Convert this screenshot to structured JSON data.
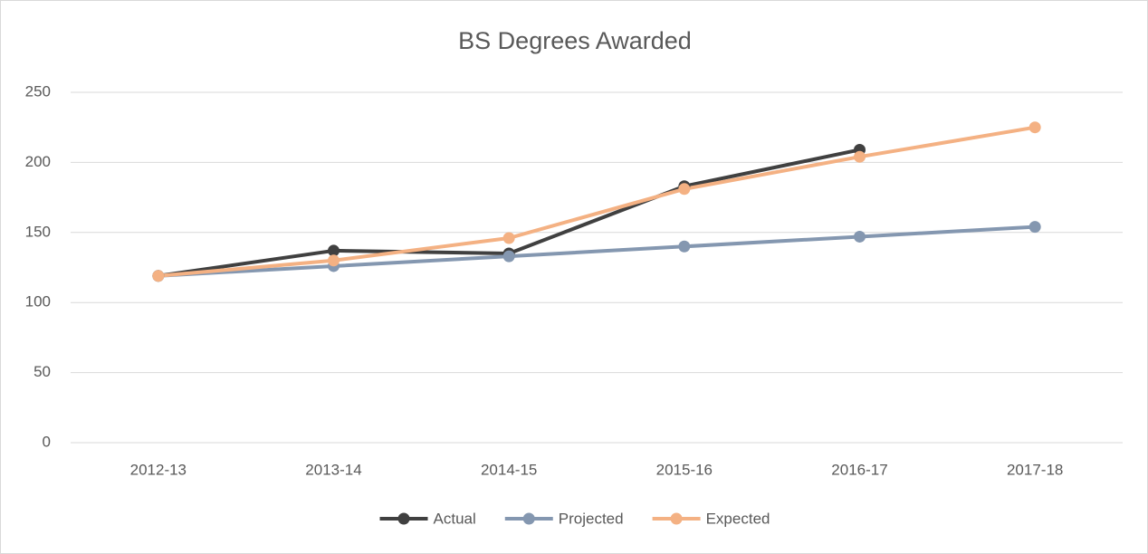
{
  "chart_data": {
    "type": "line",
    "title": "BS Degrees Awarded",
    "categories": [
      "2012-13",
      "2013-14",
      "2014-15",
      "2015-16",
      "2016-17",
      "2017-18"
    ],
    "series": [
      {
        "name": "Actual",
        "color": "#404040",
        "values": [
          119,
          137,
          135,
          183,
          209,
          null
        ]
      },
      {
        "name": "Projected",
        "color": "#8497b0",
        "values": [
          119,
          126,
          133,
          140,
          147,
          154
        ]
      },
      {
        "name": "Expected",
        "color": "#f4b183",
        "values": [
          119,
          130,
          146,
          181,
          204,
          225
        ]
      }
    ],
    "ylim": [
      0,
      250
    ],
    "yticks": [
      0,
      50,
      100,
      150,
      200,
      250
    ],
    "grid": true,
    "legend": "bottom"
  }
}
